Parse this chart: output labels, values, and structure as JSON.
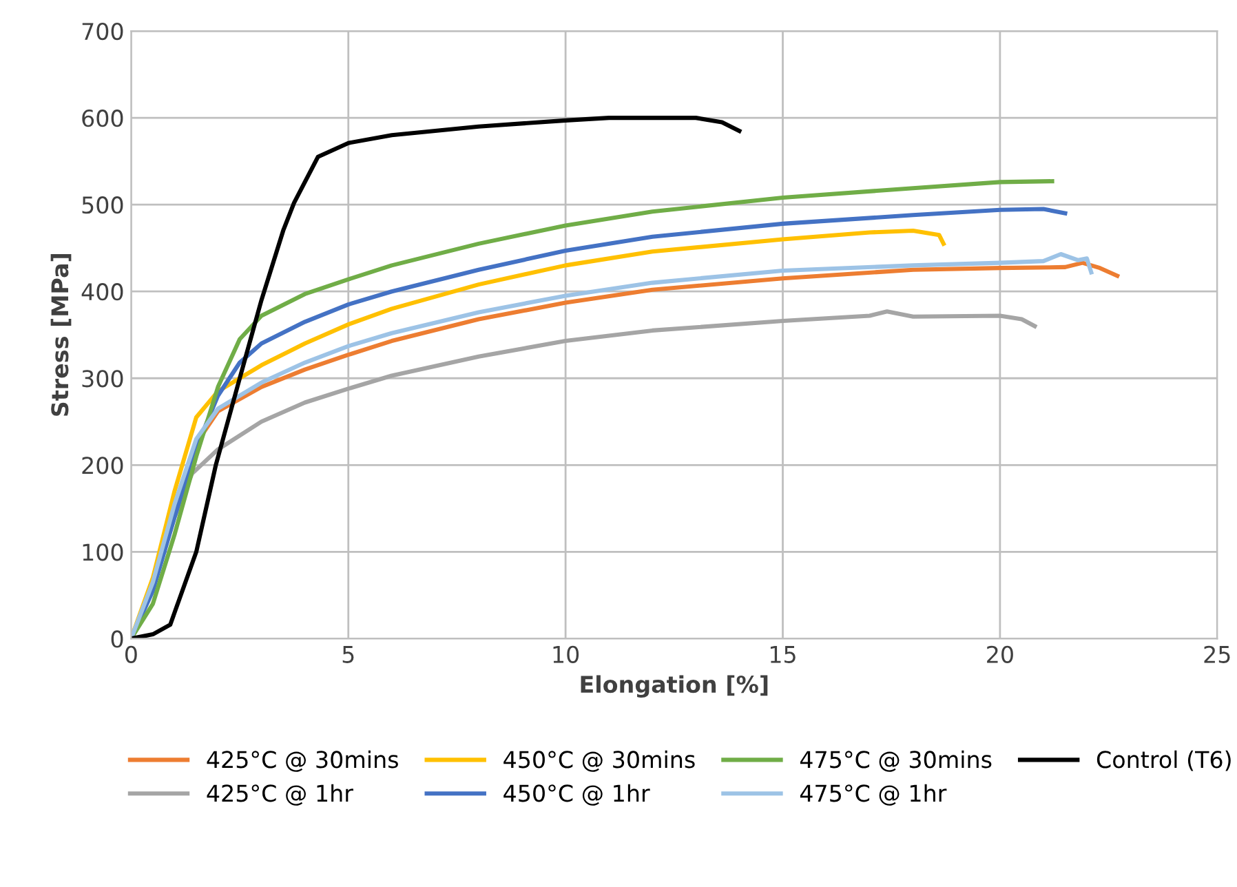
{
  "chart_data": {
    "type": "line",
    "xlabel": "Elongation [%]",
    "ylabel": "Stress [MPa]",
    "xlim": [
      0,
      25
    ],
    "ylim": [
      0,
      700
    ],
    "xticks": [
      0,
      5,
      10,
      15,
      20,
      25
    ],
    "yticks": [
      0,
      100,
      200,
      300,
      400,
      500,
      600,
      700
    ],
    "grid": true,
    "legend": "bottom",
    "marker": "none",
    "line_style": "solid",
    "series": [
      {
        "name": "425°C @ 30mins",
        "color": "#ed7d31",
        "x": [
          0,
          0.5,
          1,
          1.5,
          2,
          3,
          4,
          5,
          6,
          8,
          10,
          12,
          15,
          18,
          20,
          21.5,
          21.9,
          22.3,
          22.7
        ],
        "values": [
          0,
          60,
          150,
          225,
          262,
          290,
          310,
          327,
          343,
          368,
          387,
          402,
          415,
          425,
          427,
          428,
          433,
          427,
          418
        ]
      },
      {
        "name": "425°C @ 1hr",
        "color": "#a5a5a5",
        "x": [
          0,
          0.5,
          1,
          1.4,
          2,
          3,
          4,
          5,
          6,
          8,
          10,
          12,
          15,
          17,
          17.4,
          18,
          20,
          20.5,
          20.8
        ],
        "values": [
          0,
          60,
          140,
          190,
          218,
          250,
          272,
          288,
          303,
          325,
          343,
          355,
          366,
          372,
          377,
          371,
          372,
          368,
          360
        ]
      },
      {
        "name": "450°C @ 30mins",
        "color": "#ffc000",
        "x": [
          0,
          0.5,
          1,
          1.5,
          2,
          3,
          4,
          5,
          6,
          8,
          10,
          12,
          15,
          17,
          18,
          18.6,
          18.7
        ],
        "values": [
          0,
          70,
          170,
          255,
          285,
          315,
          340,
          362,
          380,
          408,
          430,
          446,
          460,
          468,
          470,
          465,
          455
        ]
      },
      {
        "name": "450°C @ 1hr",
        "color": "#4472c4",
        "x": [
          0,
          0.5,
          1,
          1.5,
          2,
          2.5,
          3,
          4,
          5,
          6,
          8,
          10,
          12,
          15,
          18,
          20,
          21,
          21.5
        ],
        "values": [
          0,
          55,
          140,
          220,
          280,
          318,
          340,
          365,
          385,
          400,
          425,
          447,
          463,
          478,
          488,
          494,
          495,
          490
        ]
      },
      {
        "name": "475°C @ 30mins",
        "color": "#70ad47",
        "x": [
          0,
          0.5,
          1,
          1.5,
          2,
          2.5,
          3,
          4,
          5,
          6,
          8,
          10,
          12,
          15,
          18,
          20,
          21.2
        ],
        "values": [
          0,
          40,
          120,
          210,
          290,
          345,
          372,
          397,
          414,
          430,
          455,
          476,
          492,
          508,
          519,
          526,
          527
        ]
      },
      {
        "name": "475°C @ 1hr",
        "color": "#9dc3e6",
        "x": [
          0,
          0.5,
          1,
          1.5,
          2,
          3,
          4,
          5,
          6,
          8,
          10,
          12,
          15,
          18,
          20,
          21,
          21.4,
          21.8,
          22,
          22.1
        ],
        "values": [
          0,
          65,
          155,
          230,
          265,
          295,
          318,
          337,
          352,
          376,
          395,
          410,
          424,
          430,
          433,
          435,
          443,
          436,
          438,
          422
        ]
      },
      {
        "name": "Control (T6)",
        "color": "#000000",
        "x": [
          0,
          0.5,
          0.9,
          1.5,
          1.95,
          2.5,
          3,
          3.5,
          3.75,
          4.3,
          5,
          6,
          8,
          10,
          11,
          13,
          13.6,
          14
        ],
        "values": [
          0,
          5,
          16,
          100,
          200,
          300,
          390,
          470,
          502,
          555,
          571,
          580,
          590,
          597,
          600,
          600,
          595,
          585
        ]
      }
    ]
  }
}
